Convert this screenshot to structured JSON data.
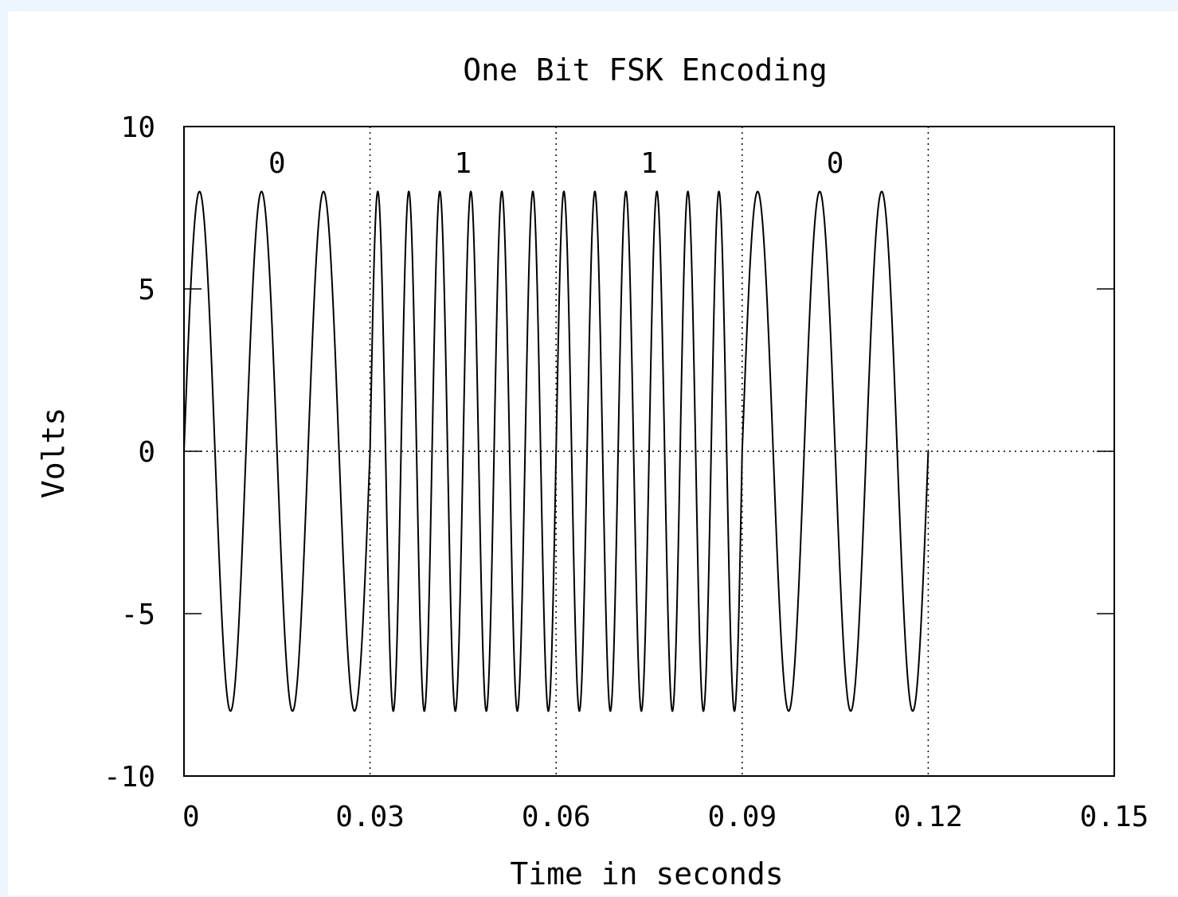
{
  "chart_data": {
    "type": "line",
    "title": "One Bit FSK Encoding",
    "xlabel": "Time in seconds",
    "ylabel": "Volts",
    "xlim": [
      0,
      0.15
    ],
    "ylim": [
      -10,
      10
    ],
    "x_ticks": [
      0,
      0.03,
      0.06,
      0.09,
      0.12,
      0.15
    ],
    "x_tick_labels": [
      "0",
      "0.03",
      "0.06",
      "0.09",
      "0.12",
      "0.15"
    ],
    "y_ticks": [
      -10,
      -5,
      0,
      5,
      10
    ],
    "y_tick_labels": [
      "-10",
      "-5",
      "0",
      "5",
      "10"
    ],
    "grid": "dotted vertical lines at bit boundaries; dotted horizontal line at 0",
    "bit_boundaries": [
      0.03,
      0.06,
      0.09,
      0.12
    ],
    "bits": [
      {
        "label": "0",
        "t_start": 0,
        "t_end": 0.03,
        "frequency_hz": 100
      },
      {
        "label": "1",
        "t_start": 0.03,
        "t_end": 0.06,
        "frequency_hz": 200
      },
      {
        "label": "1",
        "t_start": 0.06,
        "t_end": 0.09,
        "frequency_hz": 200
      },
      {
        "label": "0",
        "t_start": 0.09,
        "t_end": 0.12,
        "frequency_hz": 100
      }
    ],
    "series": [
      {
        "amplitude": 8,
        "waveform": "sine",
        "t_range": [
          0,
          0.12
        ]
      }
    ],
    "line_color": "#000000"
  }
}
